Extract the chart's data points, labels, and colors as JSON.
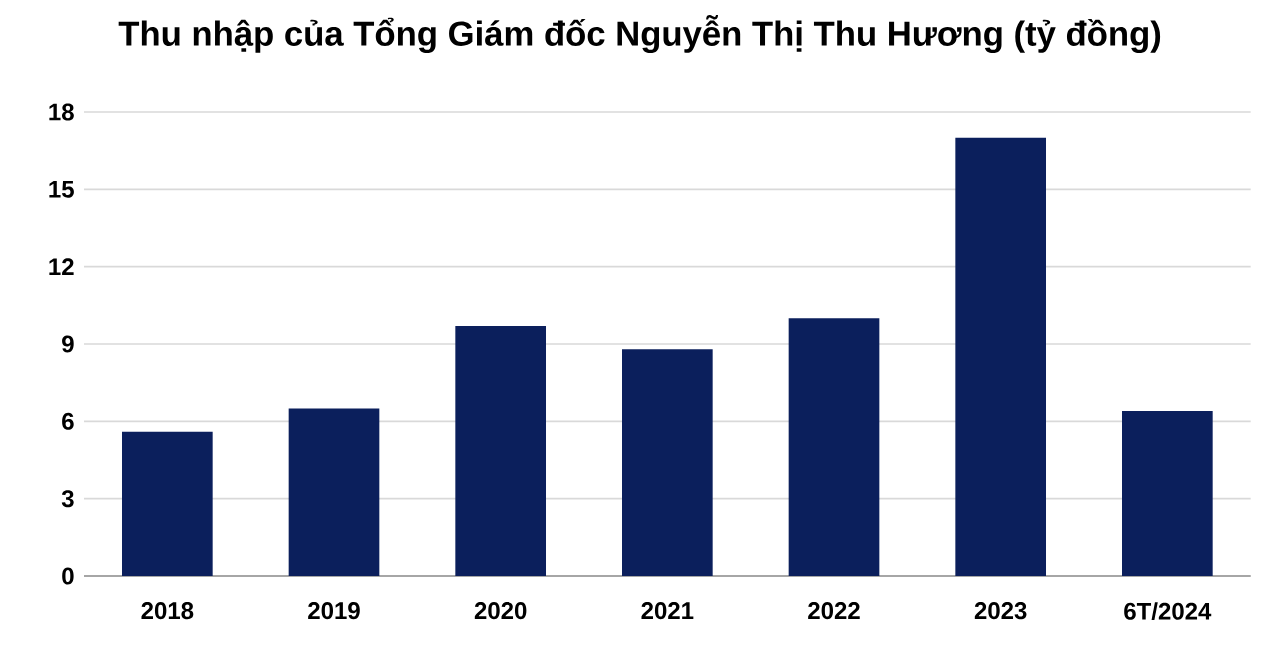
{
  "chart_data": {
    "type": "bar",
    "title": "Thu nhập của Tổng Giám đốc Nguyễn Thị Thu Hương (tỷ đồng)",
    "categories": [
      "2018",
      "2019",
      "2020",
      "2021",
      "2022",
      "2023",
      "6T/2024"
    ],
    "values": [
      5.6,
      6.5,
      9.7,
      8.8,
      10.0,
      17.0,
      6.4
    ],
    "color": "#0b1f5c",
    "ylim": [
      0,
      18
    ],
    "yticks": [
      0,
      3,
      6,
      9,
      12,
      15,
      18
    ],
    "grid": "y"
  }
}
